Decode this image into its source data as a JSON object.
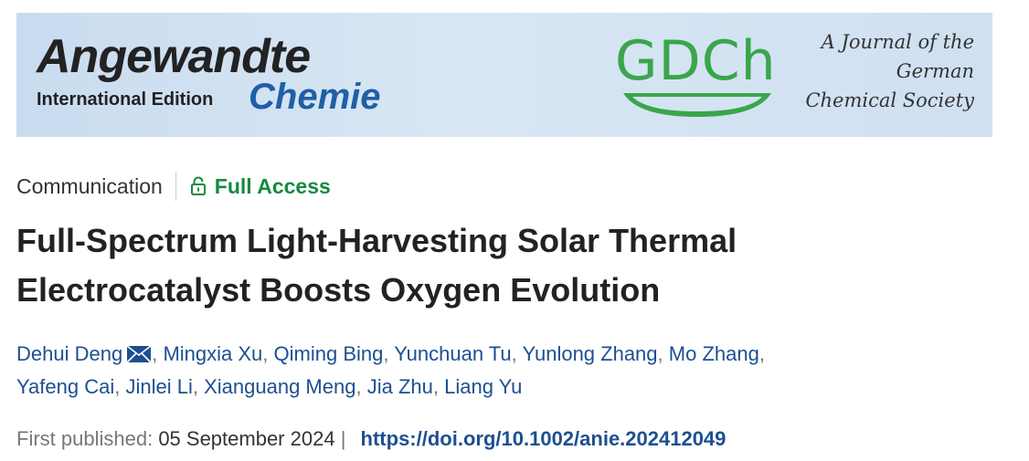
{
  "banner": {
    "journal": "Angewandte",
    "edition": "International Edition",
    "subtitle": "Chemie",
    "society_logo": "GDCh",
    "tagline": [
      "A Journal of the",
      "German",
      "Chemical Society"
    ]
  },
  "article": {
    "type": "Communication",
    "access": "Full Access",
    "title": [
      "Full-Spectrum Light-Harvesting Solar Thermal",
      "Electrocatalyst Boosts Oxygen Evolution"
    ],
    "authors": [
      "Dehui Deng",
      "Mingxia Xu",
      "Qiming Bing",
      "Yunchuan Tu",
      "Yunlong Zhang",
      "Mo Zhang",
      "Yafeng Cai",
      "Jinlei Li",
      "Xianguang Meng",
      "Jia Zhu",
      "Liang Yu"
    ],
    "author_separator": ",",
    "published_label": "First published:",
    "published_date": "05 September 2024",
    "meta_separator": "|",
    "doi": "https://doi.org/10.1002/anie.202412049"
  }
}
